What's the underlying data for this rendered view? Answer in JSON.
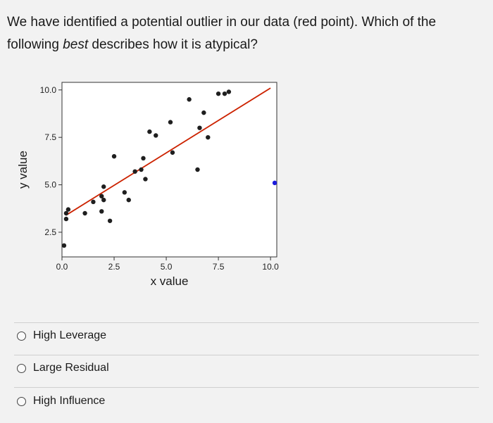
{
  "question": {
    "before": "We have identified a potential outlier in our data (red point). Which of the following ",
    "emphasis": "best",
    "after": " describes how it is atypical?"
  },
  "chart_data": {
    "type": "scatter",
    "title": "",
    "xlabel": "x value",
    "ylabel": "y value",
    "xlim": [
      0,
      10.3
    ],
    "ylim": [
      1.2,
      10.4
    ],
    "xticks": [
      0.0,
      2.5,
      5.0,
      7.5,
      10.0
    ],
    "xtick_labels": [
      "0.0",
      "2.5",
      "5.0",
      "7.5",
      "10.0"
    ],
    "yticks": [
      2.5,
      5.0,
      7.5,
      10.0
    ],
    "ytick_labels": [
      "2.5",
      "5.0",
      "7.5",
      "10.0"
    ],
    "grid": false,
    "point_color": "#1f1f1f",
    "outlier_color": "#1a1adb",
    "line_color": "#cc2200",
    "points": [
      {
        "x": 0.1,
        "y": 1.8
      },
      {
        "x": 0.2,
        "y": 3.2
      },
      {
        "x": 0.2,
        "y": 3.5
      },
      {
        "x": 0.3,
        "y": 3.7
      },
      {
        "x": 1.1,
        "y": 3.5
      },
      {
        "x": 1.5,
        "y": 4.1
      },
      {
        "x": 1.9,
        "y": 3.6
      },
      {
        "x": 1.9,
        "y": 4.4
      },
      {
        "x": 2.0,
        "y": 4.2
      },
      {
        "x": 2.3,
        "y": 3.1
      },
      {
        "x": 2.0,
        "y": 4.9
      },
      {
        "x": 2.5,
        "y": 6.5
      },
      {
        "x": 3.0,
        "y": 4.6
      },
      {
        "x": 3.2,
        "y": 4.2
      },
      {
        "x": 3.5,
        "y": 5.7
      },
      {
        "x": 3.8,
        "y": 5.8
      },
      {
        "x": 3.9,
        "y": 6.4
      },
      {
        "x": 4.0,
        "y": 5.3
      },
      {
        "x": 4.2,
        "y": 7.8
      },
      {
        "x": 4.5,
        "y": 7.6
      },
      {
        "x": 5.2,
        "y": 8.3
      },
      {
        "x": 5.3,
        "y": 6.7
      },
      {
        "x": 6.1,
        "y": 9.5
      },
      {
        "x": 6.5,
        "y": 5.8
      },
      {
        "x": 6.6,
        "y": 8.0
      },
      {
        "x": 6.8,
        "y": 8.8
      },
      {
        "x": 7.0,
        "y": 7.5
      },
      {
        "x": 7.5,
        "y": 9.8
      },
      {
        "x": 7.8,
        "y": 9.8
      },
      {
        "x": 8.0,
        "y": 9.9
      }
    ],
    "outlier": {
      "x": 10.2,
      "y": 5.1
    },
    "fit_line": {
      "x": [
        0.2,
        10.0
      ],
      "y": [
        3.4,
        10.1
      ]
    }
  },
  "options": [
    {
      "label": "High Leverage"
    },
    {
      "label": "Large Residual"
    },
    {
      "label": "High Influence"
    }
  ]
}
